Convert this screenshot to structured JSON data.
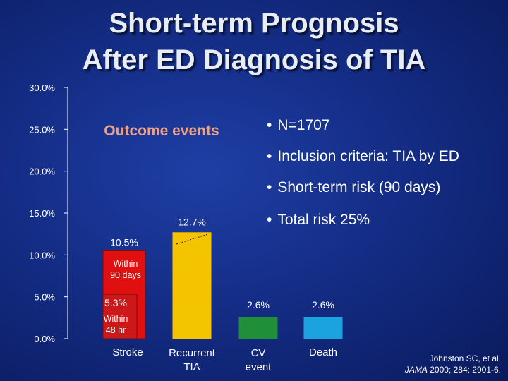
{
  "slide": {
    "title_line1": "Short-term Prognosis",
    "title_line2": "After ED Diagnosis of TIA",
    "bullets": [
      "N=1707",
      "Inclusion criteria: TIA by ED",
      "Short-term risk (90 days)",
      "Total risk 25%"
    ],
    "citation": {
      "authors": "Johnston SC, et al.",
      "journal": "JAMA",
      "details": " 2000; 284: 2901-6."
    }
  },
  "chart_data": {
    "type": "bar",
    "title": "Outcome events",
    "ylim": [
      0,
      30
    ],
    "yticks": [
      "0.0%",
      "5.0%",
      "10.0%",
      "15.0%",
      "20.0%",
      "25.0%",
      "30.0%"
    ],
    "categories": [
      "Stroke",
      "Recurrent TIA",
      "CV event",
      "Death"
    ],
    "values": [
      10.5,
      12.7,
      2.6,
      2.6
    ],
    "value_labels": [
      "10.5%",
      "12.7%",
      "2.6%",
      "2.6%"
    ],
    "stroke_breakdown": {
      "within_48h": 5.3,
      "within_48h_value_label": "5.3%",
      "within_48h_label": "Within 48 hr",
      "within_90d_label": "Within 90 days"
    },
    "colors": {
      "stroke_outer": "#e01010",
      "stroke_inner": "#cc1818",
      "recurrent_tia": "#f5c400",
      "cv_event": "#1f8f3a",
      "death": "#1ba3e0",
      "axis": "#ffffff",
      "title": "#f0a080"
    }
  }
}
